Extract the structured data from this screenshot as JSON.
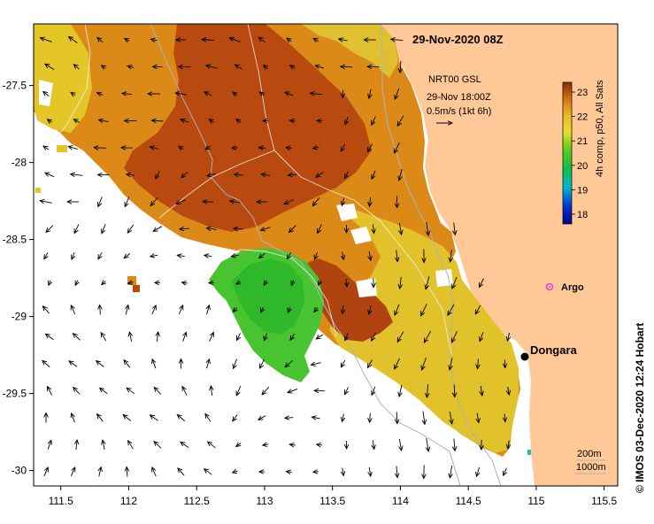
{
  "map": {
    "title": "29-Nov-2020 08Z",
    "x_ticks": [
      "111.5",
      "112",
      "112.5",
      "113",
      "113.5",
      "114",
      "114.5",
      "115",
      "115.5"
    ],
    "y_ticks": [
      "-27.5",
      "-28",
      "-28.5",
      "-29",
      "-29.5",
      "-30"
    ],
    "lon_range": [
      111.3,
      115.6
    ],
    "lat_range": [
      -27.1,
      -30.1
    ],
    "land_color": "#FFC896",
    "ocean_color": "#FFFFFF"
  },
  "current_info": {
    "line1": "NRT00 GSL",
    "line2": "29-Nov 18:00Z",
    "line3": "0.5m/s (1kt 6h)"
  },
  "colorbar": {
    "ticks": [
      "23",
      "22",
      "21",
      "20",
      "19",
      "18"
    ],
    "label": "4h comp, p50, All Sats",
    "range": [
      17.6,
      23.4
    ]
  },
  "places": {
    "dongara": "Dongara",
    "argo": "Argo"
  },
  "contour_legend": {
    "c200": "200m",
    "c1000": "1000m"
  },
  "credit": "© IMOS 03-Dec-2020 12:24 Hobart",
  "colors": {
    "sst_warm": "#B84A10",
    "sst_orange": "#DB8A18",
    "sst_yellow": "#E4C628",
    "sst_green": "#3CBF2A",
    "argo": "#E040E0",
    "contour": "#A8A8A8"
  }
}
